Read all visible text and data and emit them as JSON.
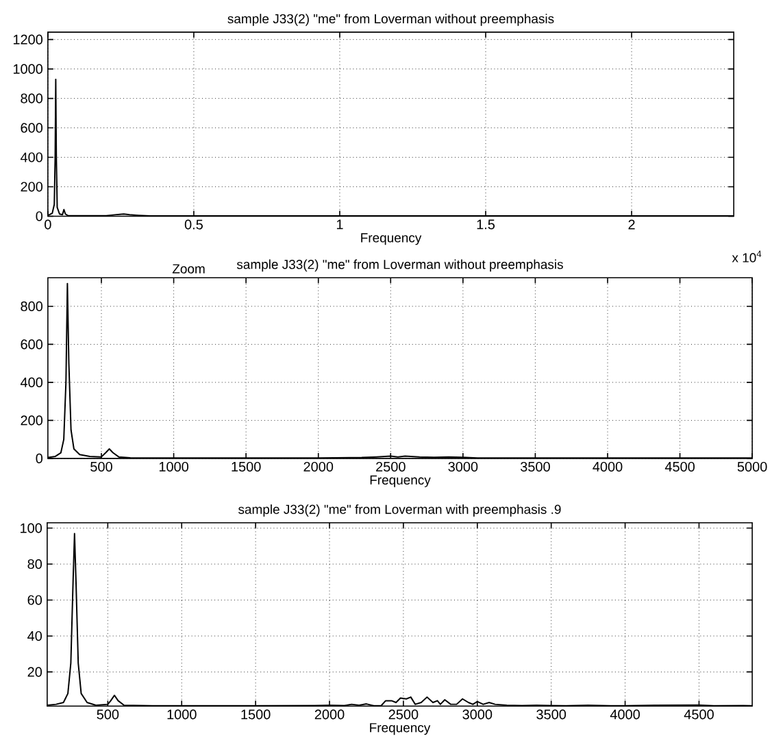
{
  "chart_data": [
    {
      "type": "line",
      "title": "sample J33(2) \"me\" from Loverman without preemphasis",
      "xlabel": "Frequency",
      "annotations": [
        "x 10$^{4}$"
      ],
      "xlim": [
        0,
        2.35
      ],
      "ylim": [
        0,
        1250
      ],
      "xticks": [
        0,
        0.5,
        1,
        1.5,
        2
      ],
      "yticks": [
        0,
        200,
        400,
        600,
        800,
        1000,
        1200
      ],
      "grid": true,
      "marker": "none",
      "line_style": "solid",
      "series": [
        {
          "color": "#000000",
          "x": [
            0,
            0.015,
            0.022,
            0.025,
            0.027,
            0.029,
            0.032,
            0.04,
            0.05,
            0.055,
            0.06,
            0.07,
            0.2,
            0.24,
            0.26,
            0.28,
            0.31,
            0.35,
            1,
            2,
            2.35
          ],
          "values": [
            5,
            20,
            80,
            400,
            930,
            400,
            60,
            15,
            10,
            45,
            15,
            3,
            3,
            12,
            15,
            10,
            6,
            2,
            2,
            2,
            2
          ]
        }
      ]
    },
    {
      "type": "line",
      "title": "sample J33(2) \"me\" from Loverman without preemphasis",
      "xlabel": "Frequency",
      "annotations": [
        "Zoom"
      ],
      "xlim": [
        130,
        5000
      ],
      "ylim": [
        0,
        950
      ],
      "xticks": [
        500,
        1000,
        1500,
        2000,
        2500,
        3000,
        3500,
        4000,
        4500,
        5000
      ],
      "yticks": [
        0,
        200,
        400,
        600,
        800
      ],
      "grid": true,
      "marker": "none",
      "line_style": "solid",
      "series": [
        {
          "color": "#000000",
          "x": [
            130,
            180,
            220,
            240,
            255,
            265,
            275,
            290,
            310,
            350,
            420,
            500,
            530,
            555,
            580,
            620,
            700,
            1000,
            1500,
            2000,
            2300,
            2400,
            2500,
            2550,
            2600,
            2700,
            2800,
            2900,
            3000,
            3050,
            3100,
            3500,
            4000,
            4500,
            5000
          ],
          "values": [
            5,
            10,
            30,
            100,
            400,
            920,
            500,
            150,
            50,
            20,
            10,
            8,
            30,
            50,
            30,
            8,
            3,
            2,
            2,
            2,
            5,
            8,
            12,
            8,
            12,
            8,
            6,
            8,
            6,
            4,
            2,
            2,
            2,
            2,
            2
          ]
        }
      ]
    },
    {
      "type": "line",
      "title": "sample J33(2) \"me\" from Loverman with preemphasis .9",
      "xlabel": "Frequency",
      "xlim": [
        90,
        4860
      ],
      "ylim": [
        1,
        103
      ],
      "xticks": [
        500,
        1000,
        1500,
        2000,
        2500,
        3000,
        3500,
        4000,
        4500
      ],
      "yticks": [
        20,
        40,
        60,
        80,
        100
      ],
      "grid": true,
      "marker": "none",
      "line_style": "solid",
      "series": [
        {
          "color": "#000000",
          "x": [
            90,
            150,
            200,
            230,
            250,
            265,
            275,
            285,
            300,
            320,
            360,
            420,
            500,
            520,
            545,
            570,
            610,
            800,
            1000,
            1500,
            1900,
            2000,
            2100,
            2150,
            2200,
            2250,
            2300,
            2350,
            2380,
            2420,
            2450,
            2480,
            2520,
            2550,
            2580,
            2620,
            2660,
            2700,
            2730,
            2750,
            2780,
            2820,
            2860,
            2900,
            2940,
            2970,
            3000,
            3040,
            3080,
            3120,
            3200,
            3300,
            3400,
            3500,
            3600,
            3750,
            3900,
            4000,
            4200,
            4500,
            4600,
            4800,
            4860
          ],
          "values": [
            1.5,
            2,
            3,
            8,
            25,
            70,
            97,
            70,
            25,
            8,
            3,
            1.5,
            2,
            4,
            7,
            4,
            1.5,
            1.2,
            1.2,
            1.2,
            1.3,
            1.5,
            1.3,
            2,
            1.5,
            2.2,
            1.2,
            1.3,
            4,
            4,
            3,
            5.5,
            5,
            6,
            2,
            3,
            6,
            3,
            4,
            2,
            4.5,
            2,
            2,
            5,
            3,
            2,
            3.5,
            2,
            3,
            2,
            1.5,
            1.3,
            1.5,
            1.3,
            1.2,
            1.5,
            1.2,
            1.2,
            1.5,
            1.6,
            1.2,
            1.3,
            1.2
          ]
        }
      ]
    }
  ]
}
